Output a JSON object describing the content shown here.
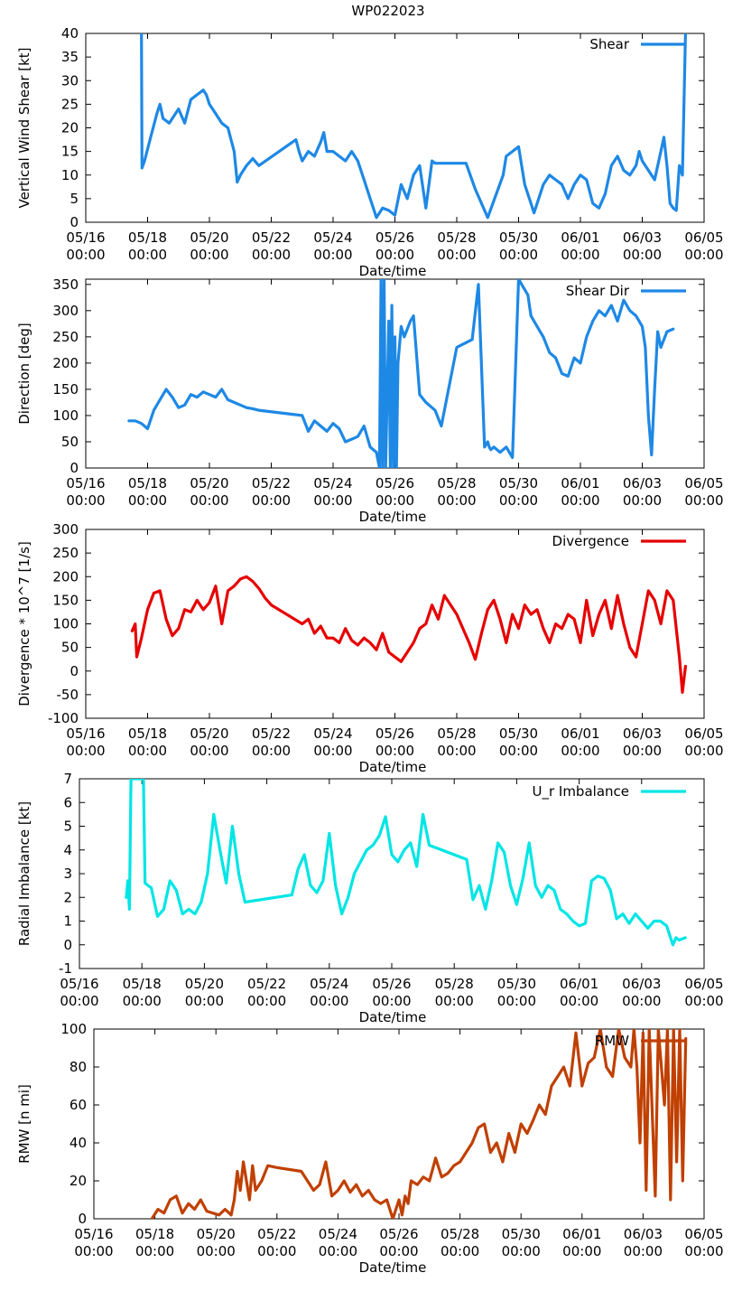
{
  "figure_title": "WP022023",
  "chart_data": [
    {
      "type": "line",
      "ylabel": "Vertical Wind Shear [kt]",
      "xlabel": "Date/time",
      "ylim": [
        0,
        40
      ],
      "yticks": [
        0,
        5,
        10,
        15,
        20,
        25,
        30,
        35,
        40
      ],
      "x_ticks": [
        "05/16\n00:00",
        "05/18\n00:00",
        "05/20\n00:00",
        "05/22\n00:00",
        "05/24\n00:00",
        "05/26\n00:00",
        "05/28\n00:00",
        "05/30\n00:00",
        "06/01\n00:00",
        "06/03\n00:00",
        "06/05\n00:00"
      ],
      "xlim_days": [
        0,
        20
      ],
      "series": [
        {
          "name": "Shear",
          "color": "#1e88e5",
          "x": [
            1.8,
            1.82,
            1.9,
            2.1,
            2.3,
            2.4,
            2.5,
            2.7,
            3.0,
            3.2,
            3.4,
            3.6,
            3.8,
            3.9,
            4.0,
            4.2,
            4.4,
            4.6,
            4.8,
            4.9,
            5.0,
            5.2,
            5.4,
            5.6,
            6.8,
            6.9,
            7.0,
            7.2,
            7.4,
            7.6,
            7.7,
            7.8,
            8.0,
            8.2,
            8.4,
            8.6,
            8.8,
            9.0,
            9.2,
            9.4,
            9.5,
            9.6,
            9.8,
            10.0,
            10.2,
            10.4,
            10.6,
            10.8,
            11.0,
            11.2,
            11.3,
            11.5,
            11.8,
            12.0,
            12.3,
            12.6,
            13.0,
            13.5,
            13.6,
            13.8,
            14.0,
            14.2,
            14.4,
            14.5,
            14.8,
            15.0,
            15.2,
            15.4,
            15.6,
            15.8,
            16.0,
            16.2,
            16.4,
            16.6,
            16.8,
            17.0,
            17.2,
            17.4,
            17.6,
            17.8,
            17.9,
            18.0,
            18.2,
            18.4,
            18.6,
            18.7,
            18.8,
            18.9,
            19.0,
            19.1,
            19.2,
            19.3,
            19.4
          ],
          "values": [
            40,
            11.5,
            13,
            18,
            23,
            25,
            22,
            21,
            24,
            21,
            26,
            27,
            28,
            27,
            25,
            23,
            21,
            20,
            15,
            8.5,
            10,
            12,
            13.5,
            12,
            17.5,
            15,
            13,
            15,
            14,
            17,
            19,
            15,
            15,
            14,
            13,
            15,
            13,
            9,
            5,
            1,
            2,
            3,
            2.5,
            1.5,
            8,
            5,
            10,
            12,
            3,
            13,
            12.5,
            12.5,
            12.5,
            12.5,
            12.5,
            7,
            1,
            10,
            14,
            15,
            16,
            8,
            4,
            2,
            8,
            10,
            9,
            8,
            5,
            8,
            10,
            9,
            4,
            3,
            6,
            12,
            14,
            11,
            10,
            12,
            15,
            13,
            11,
            9,
            15,
            18,
            12,
            4,
            3,
            2.5,
            12,
            10,
            40
          ]
        }
      ]
    },
    {
      "type": "line",
      "ylabel": "Direction [deg]",
      "xlabel": "Date/time",
      "ylim": [
        0,
        360
      ],
      "yticks": [
        0,
        50,
        100,
        150,
        200,
        250,
        300,
        350
      ],
      "x_ticks": [
        "05/16\n00:00",
        "05/18\n00:00",
        "05/20\n00:00",
        "05/22\n00:00",
        "05/24\n00:00",
        "05/26\n00:00",
        "05/28\n00:00",
        "05/30\n00:00",
        "06/01\n00:00",
        "06/03\n00:00",
        "06/05\n00:00"
      ],
      "xlim_days": [
        0,
        20
      ],
      "series": [
        {
          "name": "Shear Dir",
          "color": "#1e88e5",
          "x": [
            1.4,
            1.6,
            1.8,
            2.0,
            2.2,
            2.4,
            2.6,
            2.8,
            3.0,
            3.2,
            3.4,
            3.6,
            3.8,
            4.0,
            4.2,
            4.4,
            4.6,
            4.8,
            5.0,
            5.2,
            5.4,
            5.6,
            7.0,
            7.1,
            7.2,
            7.4,
            7.6,
            7.8,
            8.0,
            8.2,
            8.4,
            8.6,
            8.8,
            9.0,
            9.2,
            9.4,
            9.5,
            9.55,
            9.6,
            9.65,
            9.7,
            9.8,
            9.85,
            9.9,
            9.95,
            10.0,
            10.05,
            10.1,
            10.2,
            10.3,
            10.4,
            10.5,
            10.6,
            10.8,
            11.0,
            11.2,
            11.3,
            11.5,
            12.0,
            12.5,
            12.7,
            12.9,
            13.0,
            13.05,
            13.1,
            13.2,
            13.4,
            13.6,
            13.8,
            14.0,
            14.1,
            14.2,
            14.3,
            14.4,
            14.6,
            14.8,
            15.0,
            15.2,
            15.4,
            15.6,
            15.8,
            16.0,
            16.2,
            16.4,
            16.6,
            16.8,
            17.0,
            17.2,
            17.4,
            17.6,
            17.8,
            18.0,
            18.1,
            18.2,
            18.3,
            18.4,
            18.5,
            18.6,
            18.8,
            19.0
          ],
          "values": [
            90,
            90,
            85,
            75,
            110,
            130,
            150,
            135,
            115,
            120,
            140,
            135,
            145,
            140,
            135,
            150,
            130,
            125,
            120,
            115,
            113,
            110,
            100,
            85,
            70,
            90,
            80,
            70,
            85,
            75,
            50,
            55,
            60,
            80,
            40,
            30,
            0,
            360,
            0,
            360,
            0,
            280,
            0,
            310,
            0,
            250,
            0,
            200,
            270,
            250,
            265,
            280,
            290,
            140,
            125,
            115,
            110,
            80,
            230,
            245,
            350,
            40,
            50,
            40,
            35,
            40,
            30,
            40,
            20,
            360,
            350,
            340,
            330,
            290,
            270,
            250,
            220,
            210,
            180,
            175,
            210,
            200,
            250,
            280,
            300,
            290,
            310,
            280,
            320,
            300,
            290,
            270,
            230,
            100,
            25,
            150,
            260,
            230,
            260,
            265
          ]
        }
      ]
    },
    {
      "type": "line",
      "ylabel": "Divergence * 10^7 [1/s]",
      "xlabel": "Date/time",
      "ylim": [
        -100,
        300
      ],
      "yticks": [
        -100,
        -50,
        0,
        50,
        100,
        150,
        200,
        250,
        300
      ],
      "x_ticks": [
        "05/16\n00:00",
        "05/18\n00:00",
        "05/20\n00:00",
        "05/22\n00:00",
        "05/24\n00:00",
        "05/26\n00:00",
        "05/28\n00:00",
        "05/30\n00:00",
        "06/01\n00:00",
        "06/03\n00:00",
        "06/05\n00:00"
      ],
      "xlim_days": [
        0,
        20
      ],
      "series": [
        {
          "name": "Divergence",
          "color": "#e60000",
          "x": [
            1.5,
            1.6,
            1.65,
            1.8,
            2.0,
            2.2,
            2.4,
            2.6,
            2.8,
            3.0,
            3.2,
            3.4,
            3.6,
            3.8,
            4.0,
            4.2,
            4.4,
            4.6,
            4.8,
            5.0,
            5.2,
            5.4,
            5.6,
            5.8,
            6.0,
            7.0,
            7.2,
            7.4,
            7.6,
            7.8,
            8.0,
            8.2,
            8.4,
            8.6,
            8.8,
            9.0,
            9.2,
            9.4,
            9.6,
            9.8,
            10.0,
            10.2,
            10.4,
            10.6,
            10.8,
            11.0,
            11.2,
            11.4,
            11.6,
            12.0,
            12.4,
            12.6,
            12.8,
            13.0,
            13.2,
            13.4,
            13.6,
            13.8,
            14.0,
            14.2,
            14.4,
            14.6,
            14.8,
            15.0,
            15.2,
            15.4,
            15.6,
            15.8,
            16.0,
            16.2,
            16.4,
            16.6,
            16.8,
            17.0,
            17.2,
            17.4,
            17.6,
            17.8,
            18.0,
            18.2,
            18.4,
            18.6,
            18.8,
            19.0,
            19.2,
            19.3,
            19.4
          ],
          "values": [
            85,
            100,
            30,
            70,
            130,
            165,
            170,
            110,
            75,
            90,
            130,
            125,
            150,
            130,
            145,
            180,
            100,
            170,
            180,
            195,
            200,
            190,
            175,
            155,
            140,
            100,
            110,
            80,
            95,
            70,
            70,
            60,
            90,
            65,
            55,
            70,
            60,
            45,
            80,
            40,
            30,
            20,
            40,
            60,
            90,
            100,
            140,
            110,
            160,
            120,
            60,
            25,
            80,
            130,
            150,
            110,
            60,
            120,
            90,
            140,
            120,
            130,
            90,
            60,
            100,
            90,
            120,
            110,
            60,
            150,
            75,
            120,
            150,
            90,
            160,
            100,
            50,
            30,
            100,
            170,
            150,
            100,
            170,
            150,
            30,
            -45,
            10
          ]
        }
      ]
    },
    {
      "type": "line",
      "ylabel": "Radial Imbalance [kt]",
      "xlabel": "Date/time",
      "ylim": [
        -1,
        7
      ],
      "yticks": [
        -1,
        0,
        1,
        2,
        3,
        4,
        5,
        6,
        7
      ],
      "x_ticks": [
        "05/16\n00:00",
        "05/18\n00:00",
        "05/20\n00:00",
        "05/22\n00:00",
        "05/24\n00:00",
        "05/26\n00:00",
        "05/28\n00:00",
        "05/30\n00:00",
        "06/01\n00:00",
        "06/03\n00:00",
        "06/05\n00:00"
      ],
      "xlim_days": [
        0,
        20
      ],
      "series": [
        {
          "name": "U_r Imbalance",
          "color": "#00e5e5",
          "x": [
            1.5,
            1.55,
            1.6,
            1.65,
            1.7,
            1.75,
            1.8,
            2.05,
            2.1,
            2.3,
            2.5,
            2.7,
            2.9,
            3.1,
            3.3,
            3.5,
            3.7,
            3.9,
            4.1,
            4.3,
            4.5,
            4.7,
            4.9,
            5.1,
            5.3,
            6.8,
            7.0,
            7.2,
            7.4,
            7.6,
            7.8,
            8.0,
            8.2,
            8.4,
            8.6,
            8.8,
            9.0,
            9.2,
            9.4,
            9.6,
            9.8,
            10.0,
            10.2,
            10.4,
            10.6,
            10.8,
            11.0,
            11.2,
            11.4,
            11.6,
            12.4,
            12.6,
            12.8,
            13.0,
            13.2,
            13.4,
            13.6,
            13.8,
            14.0,
            14.2,
            14.4,
            14.6,
            14.8,
            15.0,
            15.2,
            15.4,
            15.6,
            15.8,
            16.0,
            16.2,
            16.4,
            16.6,
            16.8,
            17.0,
            17.2,
            17.4,
            17.6,
            17.8,
            18.0,
            18.2,
            18.4,
            18.6,
            18.8,
            19.0,
            19.1,
            19.2,
            19.4
          ],
          "values": [
            2,
            2.7,
            1.5,
            7,
            7,
            7,
            7,
            7,
            2.6,
            2.4,
            1.2,
            1.5,
            2.7,
            2.3,
            1.3,
            1.5,
            1.3,
            1.8,
            3,
            5.5,
            4,
            2.6,
            5,
            3,
            1.8,
            2.1,
            3.2,
            3.8,
            2.5,
            2.2,
            2.7,
            4.7,
            2.5,
            1.3,
            2,
            3,
            3.5,
            4,
            4.2,
            4.6,
            5.4,
            3.8,
            3.5,
            4,
            4.3,
            3.3,
            5.5,
            4.2,
            4.1,
            4,
            3.6,
            1.9,
            2.5,
            1.5,
            2.7,
            4.3,
            3.9,
            2.5,
            1.7,
            2.8,
            4.3,
            2.5,
            2,
            2.5,
            2.3,
            1.5,
            1.3,
            1,
            0.8,
            0.9,
            2.7,
            2.9,
            2.8,
            2.3,
            1.1,
            1.3,
            0.9,
            1.3,
            1.0,
            0.7,
            1.0,
            1.0,
            0.8,
            0.0,
            0.3,
            0.2,
            0.3
          ]
        }
      ]
    },
    {
      "type": "line",
      "ylabel": "RMW [n mi]",
      "xlabel": "Date/time",
      "ylim": [
        0,
        100
      ],
      "yticks": [
        0,
        20,
        40,
        60,
        80,
        100
      ],
      "x_ticks": [
        "05/16\n00:00",
        "05/18\n00:00",
        "05/20\n00:00",
        "05/22\n00:00",
        "05/24\n00:00",
        "05/26\n00:00",
        "05/28\n00:00",
        "05/30\n00:00",
        "06/01\n00:00",
        "06/03\n00:00",
        "06/05\n00:00"
      ],
      "xlim_days": [
        0,
        20
      ],
      "series": [
        {
          "name": "RMW",
          "color": "#c04000",
          "x": [
            1.9,
            2.1,
            2.3,
            2.5,
            2.7,
            2.9,
            3.1,
            3.3,
            3.5,
            3.7,
            3.9,
            4.1,
            4.3,
            4.5,
            4.6,
            4.7,
            4.8,
            4.9,
            5.0,
            5.1,
            5.2,
            5.3,
            5.5,
            5.7,
            6.0,
            6.8,
            7.0,
            7.2,
            7.4,
            7.6,
            7.8,
            8.0,
            8.2,
            8.4,
            8.6,
            8.8,
            9.0,
            9.2,
            9.4,
            9.6,
            9.8,
            10.0,
            10.1,
            10.2,
            10.3,
            10.4,
            10.6,
            10.8,
            11.0,
            11.2,
            11.4,
            11.6,
            11.8,
            12.0,
            12.4,
            12.6,
            12.8,
            13.0,
            13.2,
            13.4,
            13.6,
            13.8,
            14.0,
            14.2,
            14.4,
            14.6,
            14.8,
            15.0,
            15.2,
            15.4,
            15.6,
            15.8,
            16.0,
            16.2,
            16.4,
            16.6,
            16.8,
            17.0,
            17.2,
            17.4,
            17.6,
            17.7,
            17.8,
            17.9,
            18.0,
            18.1,
            18.2,
            18.4,
            18.5,
            18.6,
            18.7,
            18.8,
            18.9,
            19.0,
            19.1,
            19.2,
            19.3,
            19.4
          ],
          "values": [
            0,
            5,
            3,
            10,
            12,
            3,
            8,
            5,
            10,
            4,
            3,
            2,
            5,
            2,
            10,
            25,
            15,
            30,
            20,
            10,
            28,
            15,
            20,
            28,
            27,
            25,
            20,
            15,
            18,
            30,
            12,
            15,
            20,
            14,
            18,
            12,
            15,
            10,
            8,
            10,
            0,
            10,
            2,
            12,
            8,
            20,
            18,
            22,
            20,
            32,
            22,
            24,
            28,
            30,
            40,
            48,
            50,
            35,
            40,
            30,
            45,
            35,
            50,
            45,
            52,
            60,
            55,
            70,
            75,
            80,
            70,
            98,
            70,
            82,
            85,
            100,
            80,
            75,
            100,
            85,
            80,
            100,
            80,
            40,
            98,
            15,
            100,
            12,
            100,
            80,
            60,
            100,
            10,
            100,
            30,
            100,
            20,
            95
          ]
        }
      ]
    }
  ]
}
